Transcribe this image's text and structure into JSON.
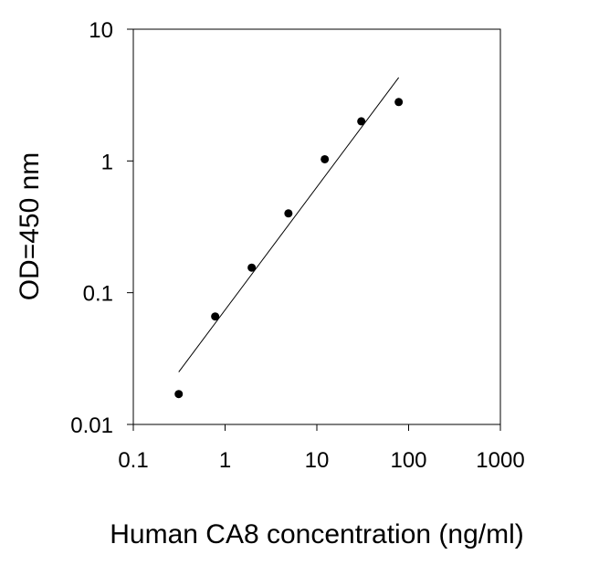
{
  "chart_data": {
    "type": "scatter",
    "title": "",
    "xlabel": "Human CA8 concentration (ng/ml)",
    "ylabel": "OD=450 nm",
    "xscale": "log",
    "yscale": "log",
    "xlim": [
      0.1,
      1000
    ],
    "ylim": [
      0.01,
      10
    ],
    "xticks": [
      "0.1",
      "1",
      "10",
      "100",
      "1000"
    ],
    "yticks": [
      "0.01",
      "0.1",
      "1",
      "10"
    ],
    "grid": false,
    "legend": "none",
    "points": [
      {
        "x": 0.3125,
        "y": 0.017
      },
      {
        "x": 0.78,
        "y": 0.066
      },
      {
        "x": 1.95,
        "y": 0.155
      },
      {
        "x": 4.9,
        "y": 0.4
      },
      {
        "x": 12.2,
        "y": 1.03
      },
      {
        "x": 30.5,
        "y": 2.0
      },
      {
        "x": 78,
        "y": 2.8
      }
    ],
    "fit_line": [
      {
        "x": 0.3125,
        "y": 0.025
      },
      {
        "x": 78,
        "y": 4.3
      }
    ],
    "colors": {
      "marker": "#000000",
      "line": "#000000",
      "axis": "#000000"
    }
  }
}
